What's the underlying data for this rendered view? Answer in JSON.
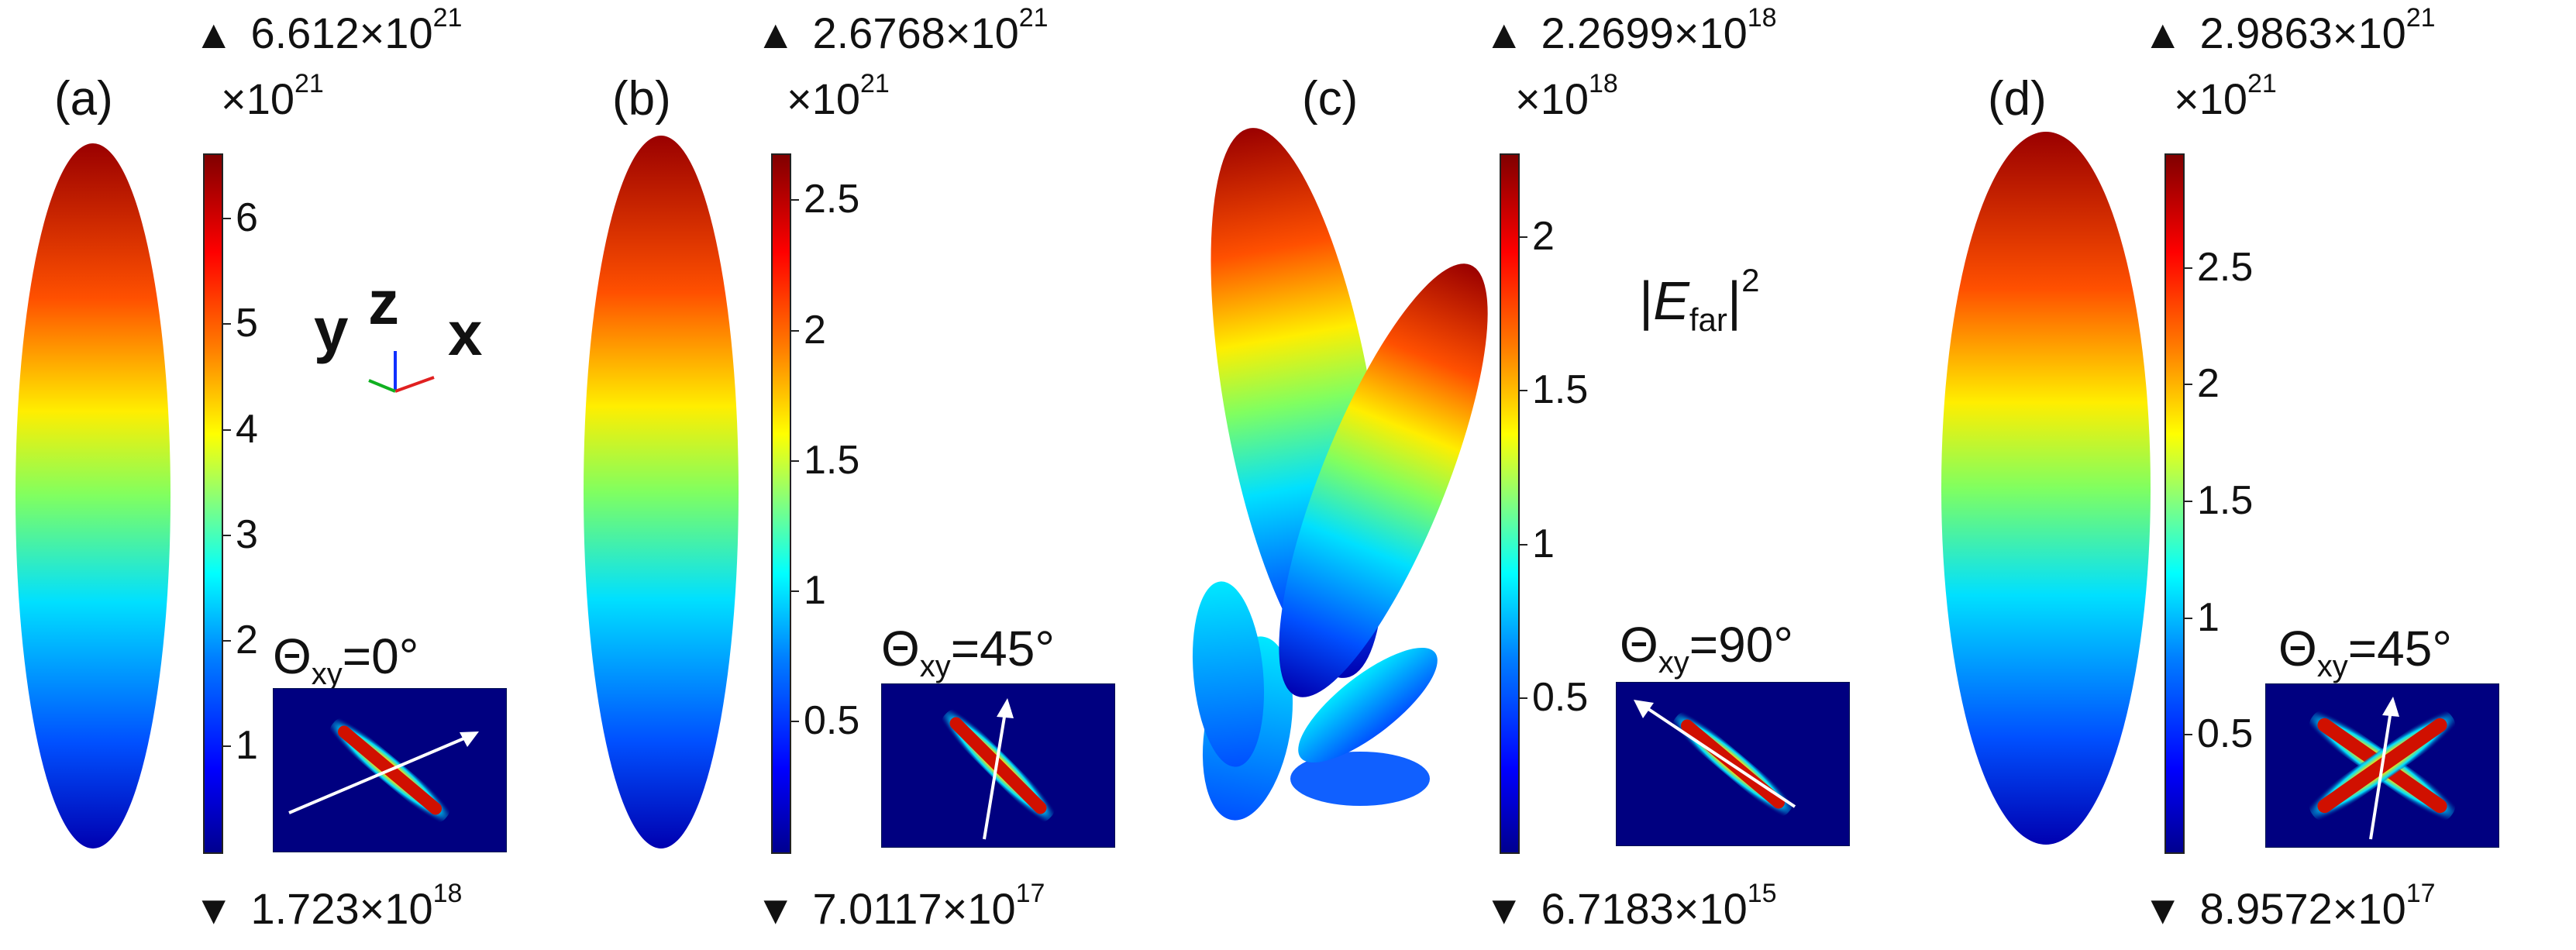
{
  "colormap": [
    "#00008f",
    "#0000ff",
    "#0080ff",
    "#00ffff",
    "#80ff80",
    "#ffff00",
    "#ff8000",
    "#ff0000",
    "#800000"
  ],
  "panels": [
    {
      "label": "(a)",
      "max_base": "6.612×10",
      "max_exp": "21",
      "min_base": "1.723×10",
      "min_exp": "18",
      "mult_base": "×10",
      "mult_exp": "21",
      "ticks": [
        "1",
        "2",
        "3",
        "4",
        "5",
        "6"
      ],
      "tick_max": 6.612,
      "theta_sym": "Θ",
      "theta_sub": "xy",
      "theta_val": "=0°"
    },
    {
      "label": "(b)",
      "max_base": "2.6768×10",
      "max_exp": "21",
      "min_base": "7.0117×10",
      "min_exp": "17",
      "mult_base": "×10",
      "mult_exp": "21",
      "ticks": [
        "0.5",
        "1",
        "1.5",
        "2",
        "2.5"
      ],
      "tick_max": 2.6768,
      "theta_sym": "Θ",
      "theta_sub": "xy",
      "theta_val": "=45°"
    },
    {
      "label": "(c)",
      "max_base": "2.2699×10",
      "max_exp": "18",
      "min_base": "6.7183×10",
      "min_exp": "15",
      "mult_base": "×10",
      "mult_exp": "18",
      "ticks": [
        "0.5",
        "1",
        "1.5",
        "2"
      ],
      "tick_max": 2.2699,
      "theta_sym": "Θ",
      "theta_sub": "xy",
      "theta_val": "=90°"
    },
    {
      "label": "(d)",
      "max_base": "2.9863×10",
      "max_exp": "21",
      "min_base": "8.9572×10",
      "min_exp": "17",
      "mult_base": "×10",
      "mult_exp": "21",
      "ticks": [
        "0.5",
        "1",
        "1.5",
        "2",
        "2.5"
      ],
      "tick_max": 2.9863,
      "theta_sym": "Θ",
      "theta_sub": "xy",
      "theta_val": "=45°"
    }
  ],
  "axes_labels": {
    "y": "y",
    "z": "z",
    "x": "x"
  },
  "quantity": {
    "pre": "|",
    "sym": "E",
    "sub": "far",
    "post": "|",
    "exp": "2"
  }
}
